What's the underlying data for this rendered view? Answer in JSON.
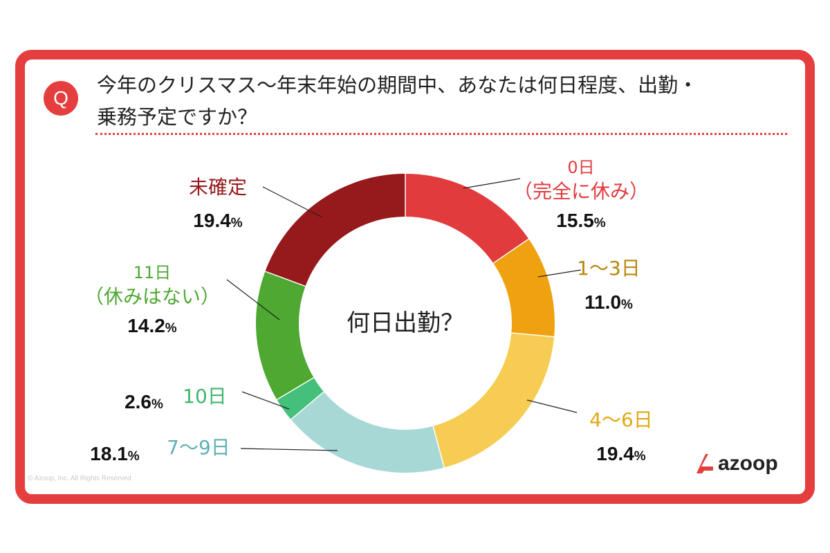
{
  "question": {
    "badge": "Q",
    "line1": "今年のクリスマス〜年末年始の期間中、あなたは何日程度、出勤・",
    "line2": "乗務予定ですか？"
  },
  "chart_data": {
    "type": "pie",
    "center_label": "何日出勤？",
    "unit": "%",
    "slices": [
      {
        "label_lines": [
          "0日",
          "（完全に休み）"
        ],
        "value": 15.5,
        "color": "#e23b3e",
        "label_color": "#e23b3e"
      },
      {
        "label_lines": [
          "1〜3日"
        ],
        "value": 11.0,
        "color": "#f0a10f",
        "label_color": "#b9860a"
      },
      {
        "label_lines": [
          "4〜6日"
        ],
        "value": 19.4,
        "color": "#f6cd52",
        "label_color": "#e0a812"
      },
      {
        "label_lines": [
          "7〜9日"
        ],
        "value": 18.1,
        "color": "#a7d8d6",
        "label_color": "#5fb0b2"
      },
      {
        "label_lines": [
          "10日"
        ],
        "value": 2.6,
        "color": "#45c07a",
        "label_color": "#3fb56e"
      },
      {
        "label_lines": [
          "11日",
          "（休みはない）"
        ],
        "value": 14.2,
        "color": "#4ea832",
        "label_color": "#4ea832"
      },
      {
        "label_lines": [
          "未確定"
        ],
        "value": 19.4,
        "color": "#96191c",
        "label_color": "#96191c"
      }
    ]
  },
  "footer": {
    "copyright": "© Azoop, Inc. All Rights Reserved",
    "brand": "azoop",
    "brand_color": "#e53e3e"
  }
}
